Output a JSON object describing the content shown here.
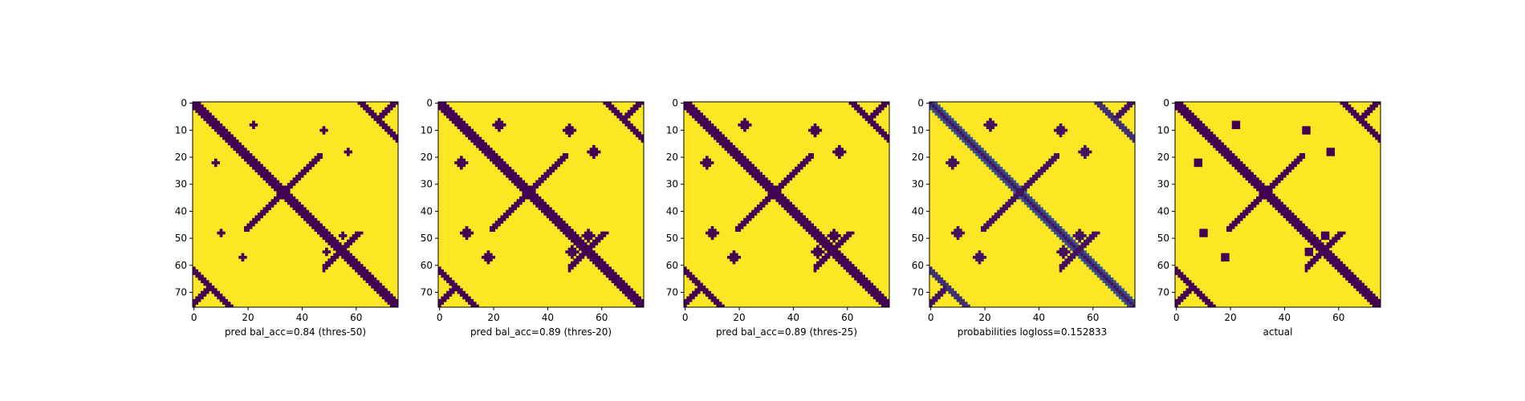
{
  "figure": {
    "colors": {
      "background": "#ffffff",
      "axis": "#000000"
    },
    "colormap": "viridis"
  },
  "chart_data": [
    {
      "type": "heatmap",
      "xlabel": "pred bal_acc=0.84 (thres-50)",
      "ylabel": "",
      "xlim": [
        0,
        75
      ],
      "ylim": [
        75,
        0
      ],
      "xticks": [
        0,
        20,
        40,
        60
      ],
      "yticks": [
        0,
        10,
        20,
        30,
        40,
        50,
        60,
        70
      ],
      "matrix_size": 76,
      "value_range": [
        0,
        1
      ],
      "values": "binary 0/1 contact map; near-zero values (dark purple) along main diagonal band, anti-diagonal arm crossing near (32,32) and (55,55), small blobs; all other cells 1 (yellow)"
    },
    {
      "type": "heatmap",
      "xlabel": "pred bal_acc=0.89 (thres-20)",
      "ylabel": "",
      "xlim": [
        0,
        75
      ],
      "ylim": [
        75,
        0
      ],
      "xticks": [
        0,
        20,
        40,
        60
      ],
      "yticks": [
        0,
        10,
        20,
        30,
        40,
        50,
        60,
        70
      ],
      "matrix_size": 76,
      "value_range": [
        0,
        1
      ]
    },
    {
      "type": "heatmap",
      "xlabel": "pred bal_acc=0.89 (thres-25)",
      "ylabel": "",
      "xlim": [
        0,
        75
      ],
      "ylim": [
        75,
        0
      ],
      "xticks": [
        0,
        20,
        40,
        60
      ],
      "yticks": [
        0,
        10,
        20,
        30,
        40,
        50,
        60,
        70
      ],
      "matrix_size": 76,
      "value_range": [
        0,
        1
      ]
    },
    {
      "type": "heatmap",
      "xlabel": "probabilities logloss=0.152833",
      "ylabel": "",
      "xlim": [
        0,
        75
      ],
      "ylim": [
        75,
        0
      ],
      "xticks": [
        0,
        20,
        40,
        60
      ],
      "yticks": [
        0,
        10,
        20,
        30,
        40,
        50,
        60,
        70
      ],
      "matrix_size": 76,
      "value_range": [
        0,
        1
      ]
    },
    {
      "type": "heatmap",
      "xlabel": "actual",
      "ylabel": "",
      "xlim": [
        0,
        75
      ],
      "ylim": [
        75,
        0
      ],
      "xticks": [
        0,
        20,
        40,
        60
      ],
      "yticks": [
        0,
        10,
        20,
        30,
        40,
        50,
        60,
        70
      ],
      "matrix_size": 76,
      "value_range": [
        0,
        1
      ]
    }
  ]
}
